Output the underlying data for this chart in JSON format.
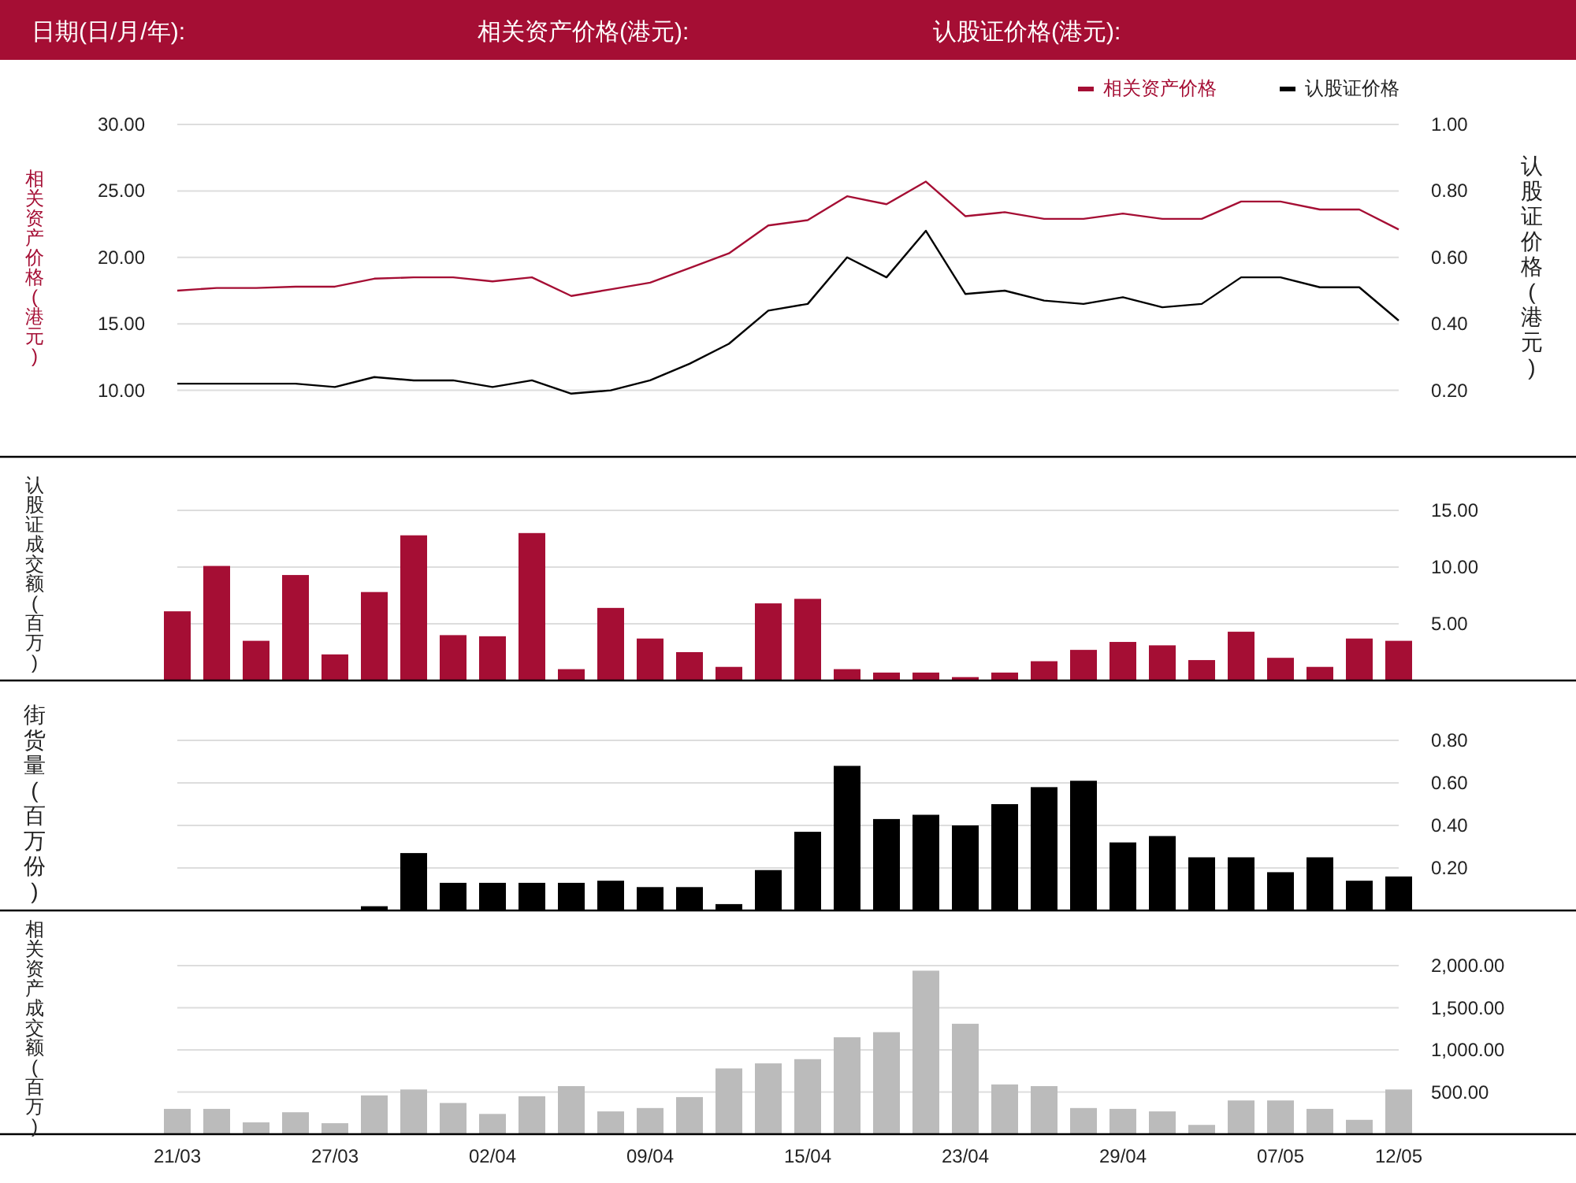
{
  "chart_data": [
    {
      "type": "line",
      "annotations": [
        "日期(日/月/年):",
        "相关资产价格(港元):",
        "认股证价格(港元):"
      ],
      "categories": [
        null,
        null,
        null,
        null,
        null,
        null,
        null,
        null,
        null,
        null,
        null,
        null,
        null,
        null,
        null,
        null,
        null,
        null,
        null,
        null,
        null,
        null,
        null,
        null,
        null,
        null,
        null,
        null,
        null,
        null,
        null,
        null
      ],
      "series": [
        {
          "name": "相关资产价格",
          "color": "#a50e34",
          "axis": "y",
          "values": [
            17.5,
            17.7,
            17.7,
            17.8,
            17.8,
            18.4,
            18.5,
            18.5,
            18.2,
            18.5,
            17.1,
            17.6,
            18.1,
            19.2,
            20.3,
            22.4,
            22.8,
            24.6,
            24.0,
            25.7,
            23.1,
            23.4,
            22.9,
            22.9,
            23.3,
            22.9,
            22.9,
            24.2,
            24.2,
            23.6,
            23.6,
            22.1
          ]
        },
        {
          "name": "认股证价格",
          "color": "#000000",
          "axis": "y2",
          "values": [
            0.22,
            0.22,
            0.22,
            0.22,
            0.21,
            0.24,
            0.23,
            0.23,
            0.21,
            0.23,
            0.19,
            0.2,
            0.23,
            0.28,
            0.34,
            0.44,
            0.46,
            0.6,
            0.54,
            0.68,
            0.49,
            0.5,
            0.47,
            0.46,
            0.48,
            0.45,
            0.46,
            0.54,
            0.54,
            0.51,
            0.51,
            0.41
          ]
        }
      ],
      "ylim": [
        5,
        30
      ],
      "yticks": [
        {
          "value": 10,
          "label": "10.00"
        },
        {
          "value": 15,
          "label": "15.00"
        },
        {
          "value": 20,
          "label": "20.00"
        },
        {
          "value": 25,
          "label": "25.00"
        },
        {
          "value": 30,
          "label": "30.00"
        }
      ],
      "y2lim": [
        0,
        1
      ],
      "y2ticks": [
        {
          "value": 0.2,
          "label": "0.20"
        },
        {
          "value": 0.4,
          "label": "0.40"
        },
        {
          "value": 0.6,
          "label": "0.60"
        },
        {
          "value": 0.8,
          "label": "0.80"
        },
        {
          "value": 1,
          "label": "1.00"
        }
      ],
      "ylabel": "相关资产价格(港元)",
      "y2label": "认股证价格(港元)",
      "grid": "y",
      "legend": "top right",
      "tick_labels": "y"
    },
    {
      "type": "bar",
      "categories": [
        null,
        null,
        null,
        null,
        null,
        null,
        null,
        null,
        null,
        null,
        null,
        null,
        null,
        null,
        null,
        null,
        null,
        null,
        null,
        null,
        null,
        null,
        null,
        null,
        null,
        null,
        null,
        null,
        null,
        null,
        null,
        null
      ],
      "series": [
        {
          "color": "#a50e34",
          "values": [
            6.1,
            10.1,
            3.5,
            9.3,
            2.3,
            7.8,
            12.8,
            4.0,
            3.9,
            13.0,
            1.0,
            6.4,
            3.7,
            2.5,
            1.2,
            6.8,
            7.2,
            1.0,
            0.7,
            0.7,
            0.3,
            0.7,
            1.7,
            2.7,
            3.4,
            3.1,
            1.8,
            4.3,
            2.0,
            1.2,
            3.7,
            3.5
          ]
        }
      ],
      "ylim": [
        0,
        15
      ],
      "yticks": [
        {
          "value": 5,
          "label": "5.00"
        },
        {
          "value": 10,
          "label": "10.00"
        },
        {
          "value": 15,
          "label": "15.00"
        }
      ],
      "ylabel": "认股证成交额(百万)",
      "grid": "y",
      "tick_labels": "y"
    },
    {
      "type": "bar",
      "categories": [
        null,
        null,
        null,
        null,
        null,
        null,
        null,
        null,
        null,
        null,
        null,
        null,
        null,
        null,
        null,
        null,
        null,
        null,
        null,
        null,
        null,
        null,
        null,
        null,
        null,
        null,
        null,
        null,
        null,
        null,
        null,
        null
      ],
      "series": [
        {
          "color": "#000000",
          "values": [
            null,
            null,
            null,
            null,
            null,
            0.02,
            0.27,
            0.13,
            0.13,
            0.13,
            0.13,
            0.14,
            0.11,
            0.11,
            0.03,
            0.19,
            0.37,
            0.68,
            0.43,
            0.45,
            0.4,
            0.5,
            0.58,
            0.61,
            0.32,
            0.35,
            0.25,
            0.25,
            0.18,
            0.25,
            0.14,
            0.16
          ]
        }
      ],
      "ylim": [
        0,
        0.8
      ],
      "yticks": [
        {
          "value": 0.2,
          "label": "0.20"
        },
        {
          "value": 0.4,
          "label": "0.40"
        },
        {
          "value": 0.6,
          "label": "0.60"
        },
        {
          "value": 0.8,
          "label": "0.80"
        }
      ],
      "ylabel": "街货量(百万份)",
      "grid": "y",
      "tick_labels": "y"
    },
    {
      "type": "bar",
      "categories": [
        "21/03",
        null,
        null,
        null,
        "27/03",
        null,
        null,
        null,
        "02/04",
        null,
        null,
        null,
        "09/04",
        null,
        null,
        null,
        "15/04",
        null,
        null,
        null,
        "23/04",
        null,
        null,
        null,
        "29/04",
        null,
        null,
        null,
        "07/05",
        null,
        null,
        "12/05"
      ],
      "series": [
        {
          "color": "#bbbbbb",
          "values": [
            300,
            300,
            140,
            260,
            130,
            460,
            530,
            370,
            240,
            450,
            570,
            270,
            310,
            440,
            780,
            840,
            890,
            1150,
            1210,
            1940,
            1310,
            590,
            570,
            310,
            300,
            270,
            110,
            400,
            400,
            300,
            170,
            530
          ]
        }
      ],
      "ylim": [
        0,
        2000
      ],
      "yticks": [
        {
          "value": 500,
          "label": "500.00"
        },
        {
          "value": 1000,
          "label": "1,000.00"
        },
        {
          "value": 1500,
          "label": "1,500.00"
        },
        {
          "value": 2000,
          "label": "2,000.00"
        }
      ],
      "ylabel": "相关资产成交额(百万)",
      "grid": "y"
    }
  ]
}
